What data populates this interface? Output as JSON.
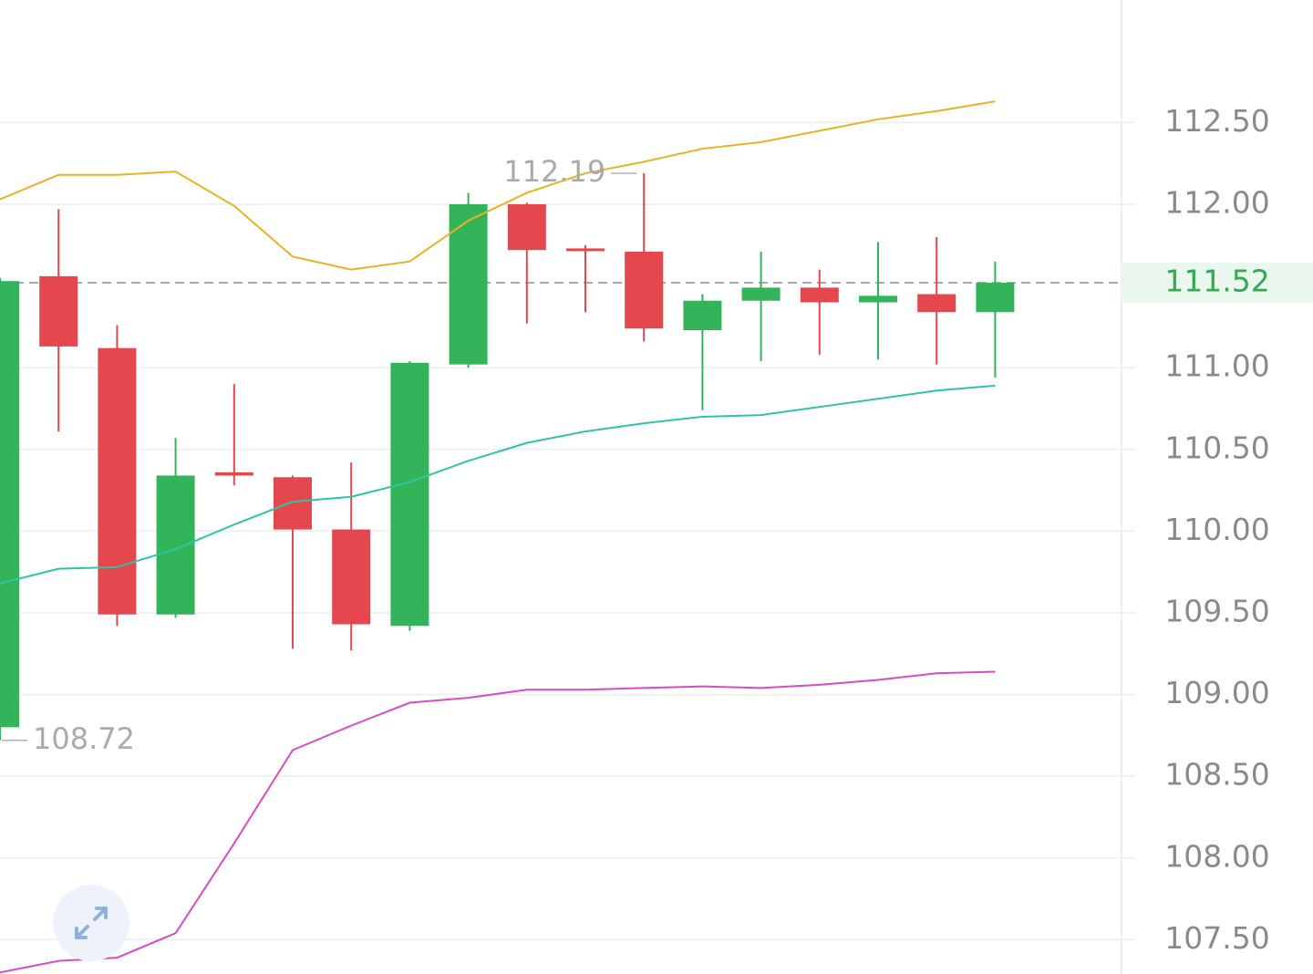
{
  "chart_data": {
    "type": "candlestick",
    "up_color": "#33b35a",
    "down_color": "#e5474f",
    "open": [
      108.8,
      111.56,
      111.12,
      109.49,
      110.36,
      110.33,
      110.01,
      109.42,
      111.02,
      112.0,
      111.73,
      111.71,
      111.23,
      111.41,
      111.49,
      111.4,
      111.45,
      111.34
    ],
    "high": [
      111.55,
      111.97,
      111.26,
      110.57,
      110.9,
      110.34,
      110.42,
      111.04,
      112.07,
      112.01,
      111.75,
      112.19,
      111.45,
      111.71,
      111.6,
      111.77,
      111.8,
      111.65
    ],
    "low": [
      108.72,
      110.61,
      109.42,
      109.47,
      110.28,
      109.28,
      109.27,
      109.39,
      111.0,
      111.27,
      111.34,
      111.16,
      110.74,
      111.04,
      111.08,
      111.05,
      111.02,
      110.94
    ],
    "close": [
      111.53,
      111.13,
      109.49,
      110.34,
      110.34,
      110.01,
      109.43,
      111.03,
      112.0,
      111.72,
      111.72,
      111.24,
      111.41,
      111.49,
      111.4,
      111.44,
      111.34,
      111.52
    ],
    "bands": [
      {
        "color": "#e6b325",
        "values": [
          112.03,
          112.18,
          112.18,
          112.2,
          111.99,
          111.68,
          111.6,
          111.65,
          111.9,
          112.07,
          112.19,
          112.26,
          112.34,
          112.38,
          112.45,
          112.52,
          112.57,
          112.63
        ]
      },
      {
        "color": "#2ec4a4",
        "values": [
          109.68,
          109.77,
          109.78,
          109.89,
          110.04,
          110.18,
          110.21,
          110.3,
          110.43,
          110.54,
          110.61,
          110.66,
          110.7,
          110.71,
          110.76,
          110.81,
          110.86,
          110.89
        ]
      },
      {
        "color": "#d94bc2",
        "values": [
          107.3,
          107.37,
          107.39,
          107.54,
          108.09,
          108.66,
          108.81,
          108.95,
          108.98,
          109.03,
          109.03,
          109.04,
          109.05,
          109.04,
          109.06,
          109.09,
          109.13,
          109.14
        ]
      }
    ],
    "max_label": 112.19,
    "min_label": 108.72,
    "last_price": {
      "value": 111.52,
      "label": "111.52"
    },
    "ylim": [
      107.29,
      113.25
    ],
    "yticks": [
      {
        "value": 112.5,
        "label": "112.50"
      },
      {
        "value": 112,
        "label": "112.00"
      },
      {
        "value": 111,
        "label": "111.00"
      },
      {
        "value": 110.5,
        "label": "110.50"
      },
      {
        "value": 110,
        "label": "110.00"
      },
      {
        "value": 109.5,
        "label": "109.50"
      },
      {
        "value": 109,
        "label": "109.00"
      },
      {
        "value": 108.5,
        "label": "108.50"
      },
      {
        "value": 108,
        "label": "108.00"
      },
      {
        "value": 107.5,
        "label": "107.50"
      }
    ],
    "grid": true
  }
}
